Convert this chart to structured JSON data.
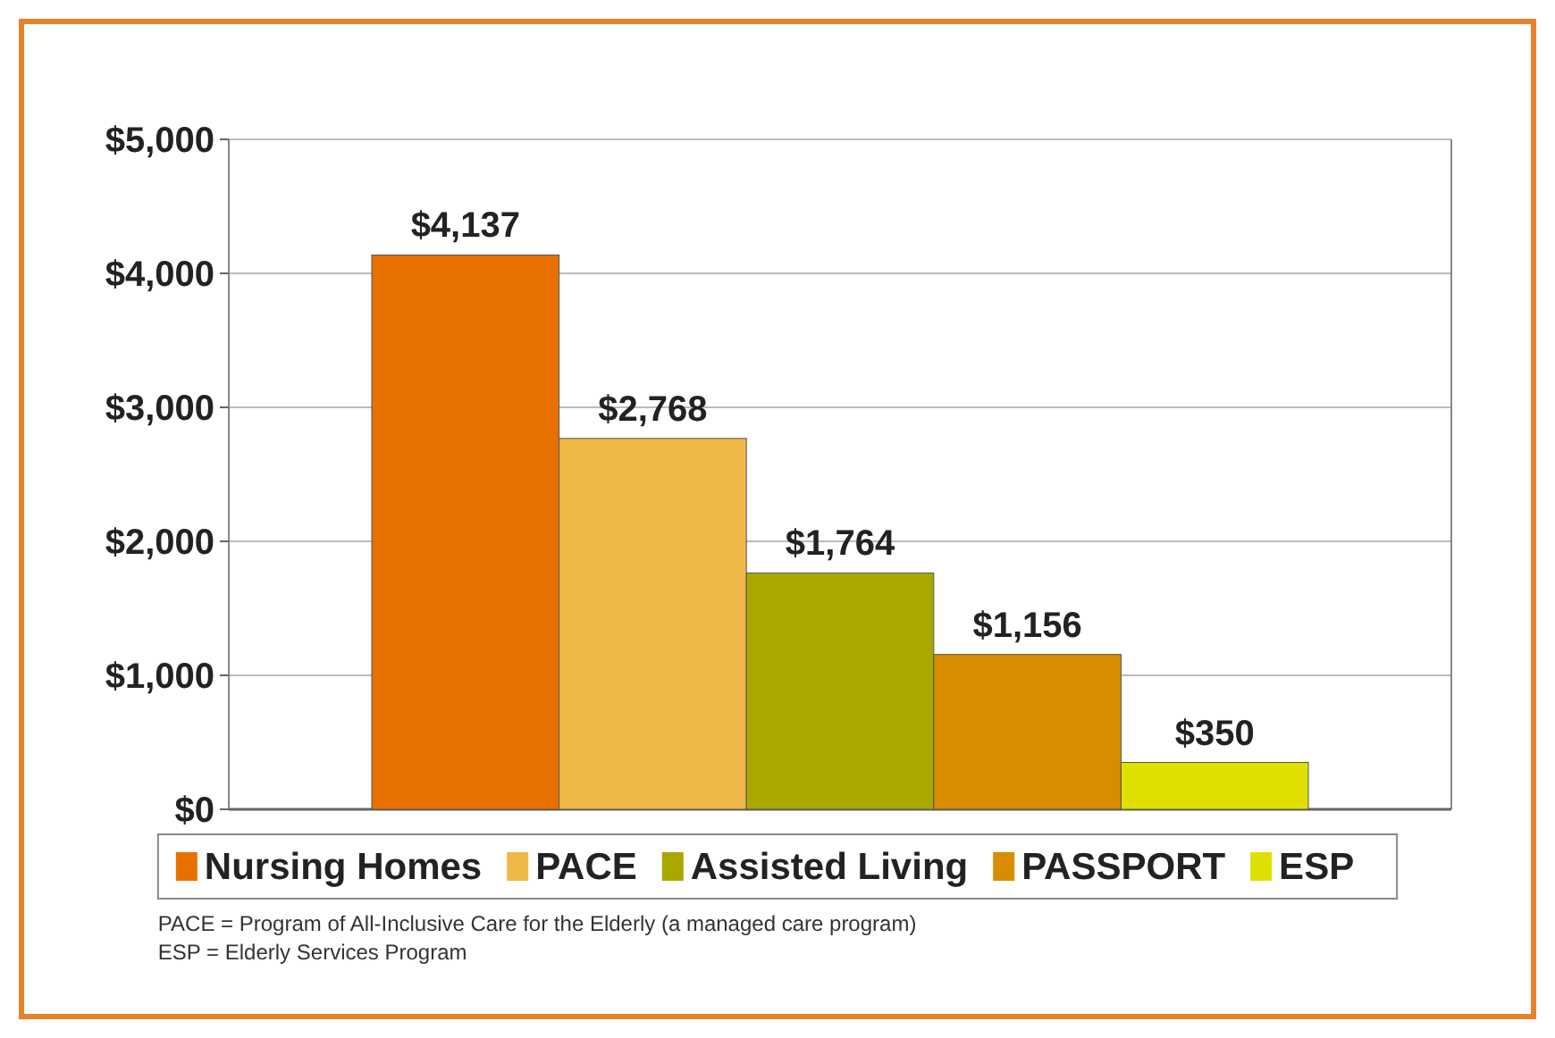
{
  "chart_data": {
    "type": "bar",
    "categories": [
      null,
      null,
      null,
      null,
      null
    ],
    "stacked": true,
    "series": [
      {
        "name": "Nursing Homes",
        "color": "#e87000",
        "values": [
          4137,
          null,
          null,
          null,
          null
        ],
        "value_labels": [
          "$4,137",
          null,
          null,
          null,
          null
        ]
      },
      {
        "name": "PACE",
        "color": "#f0b848",
        "values": [
          null,
          2768,
          null,
          null,
          null
        ],
        "value_labels": [
          null,
          "$2,768",
          null,
          null,
          null
        ]
      },
      {
        "name": "Assisted Living",
        "color": "#aaa800",
        "values": [
          null,
          null,
          1764,
          null,
          null
        ],
        "value_labels": [
          null,
          null,
          "$1,764",
          null,
          null
        ]
      },
      {
        "name": "PASSPORT",
        "color": "#d88c00",
        "values": [
          null,
          null,
          null,
          1156,
          null
        ],
        "value_labels": [
          null,
          null,
          null,
          "$1,156",
          null
        ]
      },
      {
        "name": "ESP",
        "color": "#e0e000",
        "values": [
          null,
          null,
          null,
          null,
          350
        ],
        "value_labels": [
          null,
          null,
          null,
          null,
          "$350"
        ]
      }
    ],
    "ylim": [
      0,
      5000
    ],
    "yticks": [
      {
        "value": 0,
        "label": "$0"
      },
      {
        "value": 1000,
        "label": "$1,000"
      },
      {
        "value": 2000,
        "label": "$2,000"
      },
      {
        "value": 3000,
        "label": "$3,000"
      },
      {
        "value": 4000,
        "label": "$4,000"
      },
      {
        "value": 5000,
        "label": "$5,000"
      }
    ],
    "grid": "y",
    "legend": "bottom",
    "annotations": [
      "PACE = Program of All-Inclusive Care for the Elderly (a managed care program)",
      "ESP = Elderly Services Program"
    ]
  }
}
